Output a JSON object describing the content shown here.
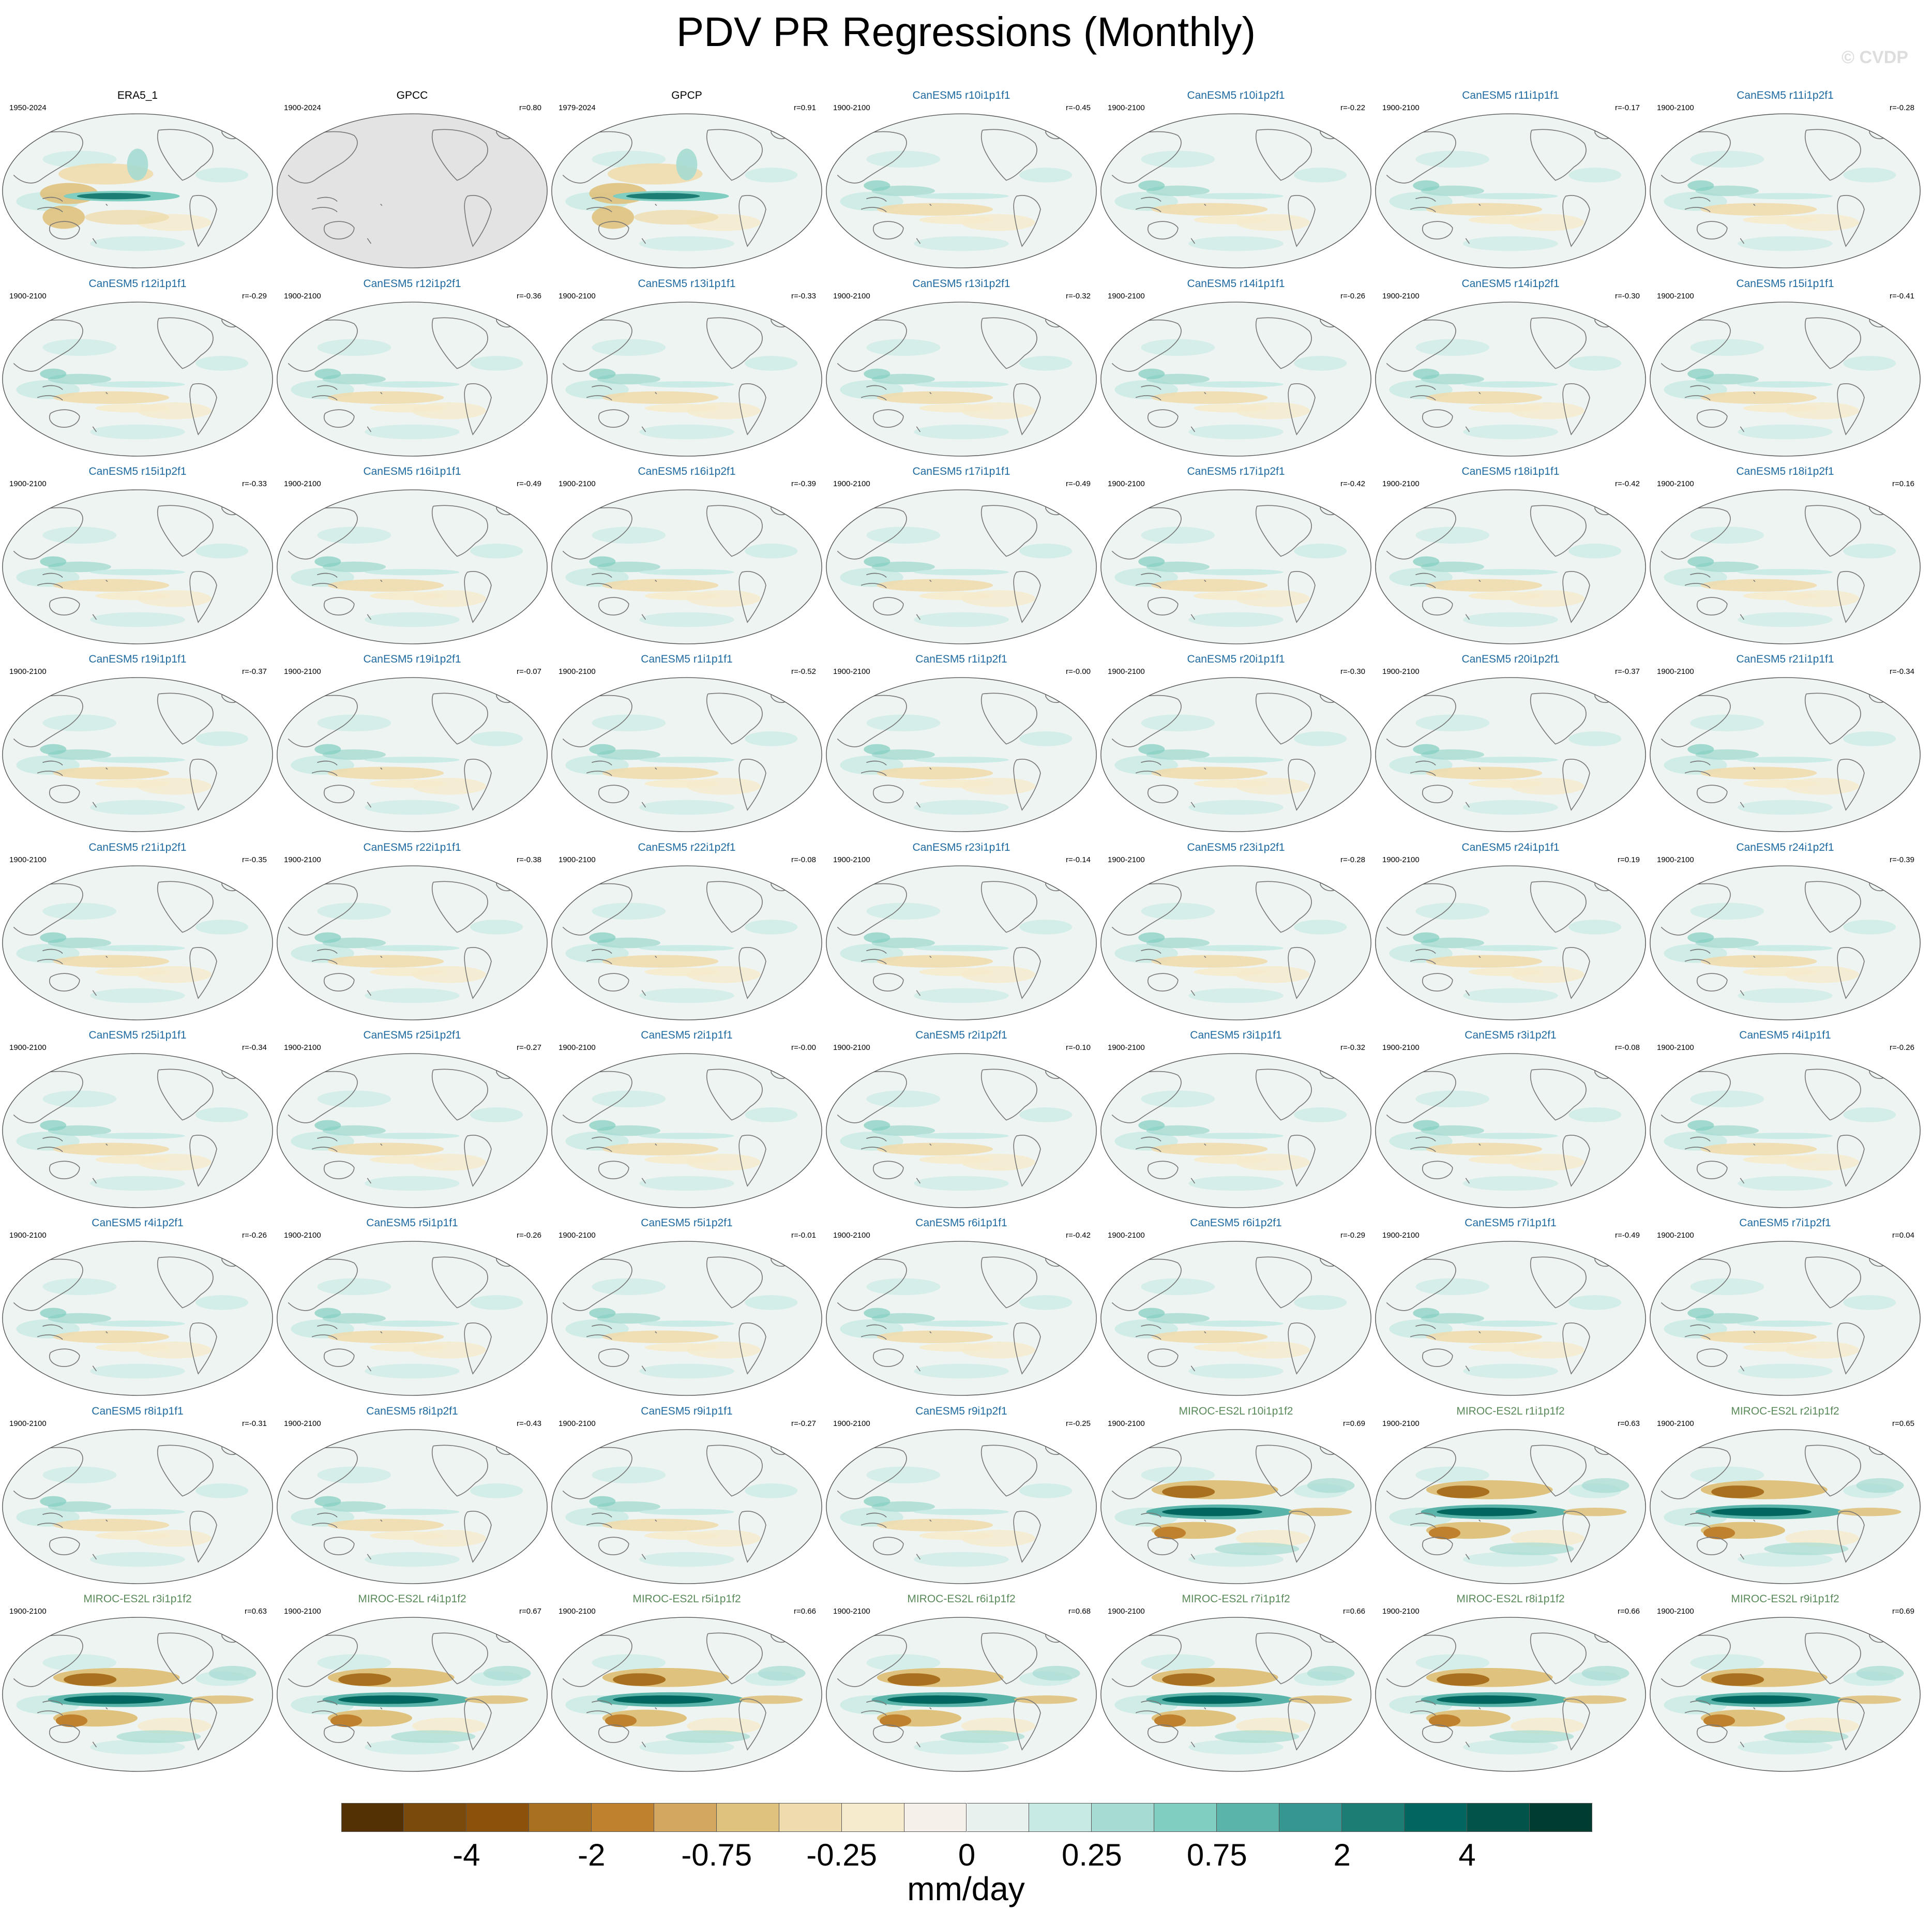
{
  "title": "PDV PR Regressions (Monthly)",
  "copyright": "© CVDP",
  "colors": {
    "ref_title": "#000000",
    "canesm_title": "#1e6aa0",
    "miroc_title": "#5a8a5a",
    "land_outline": "#777777",
    "gpcc_missing": "#e3e3e3"
  },
  "panels": [
    {
      "title": "ERA5_1",
      "years": "1950-2024",
      "corr": "",
      "group": "ref",
      "pattern": "obs"
    },
    {
      "title": "GPCC",
      "years": "1900-2024",
      "corr": "r=0.80",
      "group": "ref",
      "pattern": "gpcc"
    },
    {
      "title": "GPCP",
      "years": "1979-2024",
      "corr": "r=0.91",
      "group": "ref",
      "pattern": "obs"
    },
    {
      "title": "CanESM5 r10i1p1f1",
      "years": "1900-2100",
      "corr": "r=-0.45",
      "group": "canesm",
      "pattern": "canesm"
    },
    {
      "title": "CanESM5 r10i1p2f1",
      "years": "1900-2100",
      "corr": "r=-0.22",
      "group": "canesm",
      "pattern": "canesm"
    },
    {
      "title": "CanESM5 r11i1p1f1",
      "years": "1900-2100",
      "corr": "r=-0.17",
      "group": "canesm",
      "pattern": "canesm"
    },
    {
      "title": "CanESM5 r11i1p2f1",
      "years": "1900-2100",
      "corr": "r=-0.28",
      "group": "canesm",
      "pattern": "canesm"
    },
    {
      "title": "CanESM5 r12i1p1f1",
      "years": "1900-2100",
      "corr": "r=-0.29",
      "group": "canesm",
      "pattern": "canesm"
    },
    {
      "title": "CanESM5 r12i1p2f1",
      "years": "1900-2100",
      "corr": "r=-0.36",
      "group": "canesm",
      "pattern": "canesm"
    },
    {
      "title": "CanESM5 r13i1p1f1",
      "years": "1900-2100",
      "corr": "r=-0.33",
      "group": "canesm",
      "pattern": "canesm"
    },
    {
      "title": "CanESM5 r13i1p2f1",
      "years": "1900-2100",
      "corr": "r=-0.32",
      "group": "canesm",
      "pattern": "canesm"
    },
    {
      "title": "CanESM5 r14i1p1f1",
      "years": "1900-2100",
      "corr": "r=-0.26",
      "group": "canesm",
      "pattern": "canesm"
    },
    {
      "title": "CanESM5 r14i1p2f1",
      "years": "1900-2100",
      "corr": "r=-0.30",
      "group": "canesm",
      "pattern": "canesm"
    },
    {
      "title": "CanESM5 r15i1p1f1",
      "years": "1900-2100",
      "corr": "r=-0.41",
      "group": "canesm",
      "pattern": "canesm"
    },
    {
      "title": "CanESM5 r15i1p2f1",
      "years": "1900-2100",
      "corr": "r=-0.33",
      "group": "canesm",
      "pattern": "canesm"
    },
    {
      "title": "CanESM5 r16i1p1f1",
      "years": "1900-2100",
      "corr": "r=-0.49",
      "group": "canesm",
      "pattern": "canesm"
    },
    {
      "title": "CanESM5 r16i1p2f1",
      "years": "1900-2100",
      "corr": "r=-0.39",
      "group": "canesm",
      "pattern": "canesm"
    },
    {
      "title": "CanESM5 r17i1p1f1",
      "years": "1900-2100",
      "corr": "r=-0.49",
      "group": "canesm",
      "pattern": "canesm"
    },
    {
      "title": "CanESM5 r17i1p2f1",
      "years": "1900-2100",
      "corr": "r=-0.42",
      "group": "canesm",
      "pattern": "canesm"
    },
    {
      "title": "CanESM5 r18i1p1f1",
      "years": "1900-2100",
      "corr": "r=-0.42",
      "group": "canesm",
      "pattern": "canesm"
    },
    {
      "title": "CanESM5 r18i1p2f1",
      "years": "1900-2100",
      "corr": "r=0.16",
      "group": "canesm",
      "pattern": "canesm"
    },
    {
      "title": "CanESM5 r19i1p1f1",
      "years": "1900-2100",
      "corr": "r=-0.37",
      "group": "canesm",
      "pattern": "canesm"
    },
    {
      "title": "CanESM5 r19i1p2f1",
      "years": "1900-2100",
      "corr": "r=-0.07",
      "group": "canesm",
      "pattern": "canesm"
    },
    {
      "title": "CanESM5 r1i1p1f1",
      "years": "1900-2100",
      "corr": "r=-0.52",
      "group": "canesm",
      "pattern": "canesm"
    },
    {
      "title": "CanESM5 r1i1p2f1",
      "years": "1900-2100",
      "corr": "r=-0.00",
      "group": "canesm",
      "pattern": "canesm"
    },
    {
      "title": "CanESM5 r20i1p1f1",
      "years": "1900-2100",
      "corr": "r=-0.30",
      "group": "canesm",
      "pattern": "canesm"
    },
    {
      "title": "CanESM5 r20i1p2f1",
      "years": "1900-2100",
      "corr": "r=-0.37",
      "group": "canesm",
      "pattern": "canesm"
    },
    {
      "title": "CanESM5 r21i1p1f1",
      "years": "1900-2100",
      "corr": "r=-0.34",
      "group": "canesm",
      "pattern": "canesm"
    },
    {
      "title": "CanESM5 r21i1p2f1",
      "years": "1900-2100",
      "corr": "r=-0.35",
      "group": "canesm",
      "pattern": "canesm"
    },
    {
      "title": "CanESM5 r22i1p1f1",
      "years": "1900-2100",
      "corr": "r=-0.38",
      "group": "canesm",
      "pattern": "canesm"
    },
    {
      "title": "CanESM5 r22i1p2f1",
      "years": "1900-2100",
      "corr": "r=-0.08",
      "group": "canesm",
      "pattern": "canesm"
    },
    {
      "title": "CanESM5 r23i1p1f1",
      "years": "1900-2100",
      "corr": "r=-0.14",
      "group": "canesm",
      "pattern": "canesm"
    },
    {
      "title": "CanESM5 r23i1p2f1",
      "years": "1900-2100",
      "corr": "r=-0.28",
      "group": "canesm",
      "pattern": "canesm"
    },
    {
      "title": "CanESM5 r24i1p1f1",
      "years": "1900-2100",
      "corr": "r=0.19",
      "group": "canesm",
      "pattern": "canesm"
    },
    {
      "title": "CanESM5 r24i1p2f1",
      "years": "1900-2100",
      "corr": "r=-0.39",
      "group": "canesm",
      "pattern": "canesm"
    },
    {
      "title": "CanESM5 r25i1p1f1",
      "years": "1900-2100",
      "corr": "r=-0.34",
      "group": "canesm",
      "pattern": "canesm"
    },
    {
      "title": "CanESM5 r25i1p2f1",
      "years": "1900-2100",
      "corr": "r=-0.27",
      "group": "canesm",
      "pattern": "canesm"
    },
    {
      "title": "CanESM5 r2i1p1f1",
      "years": "1900-2100",
      "corr": "r=-0.00",
      "group": "canesm",
      "pattern": "canesm"
    },
    {
      "title": "CanESM5 r2i1p2f1",
      "years": "1900-2100",
      "corr": "r=-0.10",
      "group": "canesm",
      "pattern": "canesm"
    },
    {
      "title": "CanESM5 r3i1p1f1",
      "years": "1900-2100",
      "corr": "r=-0.32",
      "group": "canesm",
      "pattern": "canesm"
    },
    {
      "title": "CanESM5 r3i1p2f1",
      "years": "1900-2100",
      "corr": "r=-0.08",
      "group": "canesm",
      "pattern": "canesm"
    },
    {
      "title": "CanESM5 r4i1p1f1",
      "years": "1900-2100",
      "corr": "r=-0.26",
      "group": "canesm",
      "pattern": "canesm"
    },
    {
      "title": "CanESM5 r4i1p2f1",
      "years": "1900-2100",
      "corr": "r=-0.26",
      "group": "canesm",
      "pattern": "canesm"
    },
    {
      "title": "CanESM5 r5i1p1f1",
      "years": "1900-2100",
      "corr": "r=-0.26",
      "group": "canesm",
      "pattern": "canesm"
    },
    {
      "title": "CanESM5 r5i1p2f1",
      "years": "1900-2100",
      "corr": "r=-0.01",
      "group": "canesm",
      "pattern": "canesm"
    },
    {
      "title": "CanESM5 r6i1p1f1",
      "years": "1900-2100",
      "corr": "r=-0.42",
      "group": "canesm",
      "pattern": "canesm"
    },
    {
      "title": "CanESM5 r6i1p2f1",
      "years": "1900-2100",
      "corr": "r=-0.29",
      "group": "canesm",
      "pattern": "canesm"
    },
    {
      "title": "CanESM5 r7i1p1f1",
      "years": "1900-2100",
      "corr": "r=-0.49",
      "group": "canesm",
      "pattern": "canesm"
    },
    {
      "title": "CanESM5 r7i1p2f1",
      "years": "1900-2100",
      "corr": "r=0.04",
      "group": "canesm",
      "pattern": "canesm"
    },
    {
      "title": "CanESM5 r8i1p1f1",
      "years": "1900-2100",
      "corr": "r=-0.31",
      "group": "canesm",
      "pattern": "canesm"
    },
    {
      "title": "CanESM5 r8i1p2f1",
      "years": "1900-2100",
      "corr": "r=-0.43",
      "group": "canesm",
      "pattern": "canesm"
    },
    {
      "title": "CanESM5 r9i1p1f1",
      "years": "1900-2100",
      "corr": "r=-0.27",
      "group": "canesm",
      "pattern": "canesm"
    },
    {
      "title": "CanESM5 r9i1p2f1",
      "years": "1900-2100",
      "corr": "r=-0.25",
      "group": "canesm",
      "pattern": "canesm"
    },
    {
      "title": "MIROC-ES2L r10i1p1f2",
      "years": "1900-2100",
      "corr": "r=0.69",
      "group": "miroc",
      "pattern": "miroc"
    },
    {
      "title": "MIROC-ES2L r1i1p1f2",
      "years": "1900-2100",
      "corr": "r=0.63",
      "group": "miroc",
      "pattern": "miroc"
    },
    {
      "title": "MIROC-ES2L r2i1p1f2",
      "years": "1900-2100",
      "corr": "r=0.65",
      "group": "miroc",
      "pattern": "miroc"
    },
    {
      "title": "MIROC-ES2L r3i1p1f2",
      "years": "1900-2100",
      "corr": "r=0.63",
      "group": "miroc",
      "pattern": "miroc"
    },
    {
      "title": "MIROC-ES2L r4i1p1f2",
      "years": "1900-2100",
      "corr": "r=0.67",
      "group": "miroc",
      "pattern": "miroc"
    },
    {
      "title": "MIROC-ES2L r5i1p1f2",
      "years": "1900-2100",
      "corr": "r=0.66",
      "group": "miroc",
      "pattern": "miroc"
    },
    {
      "title": "MIROC-ES2L r6i1p1f2",
      "years": "1900-2100",
      "corr": "r=0.68",
      "group": "miroc",
      "pattern": "miroc"
    },
    {
      "title": "MIROC-ES2L r7i1p1f2",
      "years": "1900-2100",
      "corr": "r=0.66",
      "group": "miroc",
      "pattern": "miroc"
    },
    {
      "title": "MIROC-ES2L r8i1p1f2",
      "years": "1900-2100",
      "corr": "r=0.66",
      "group": "miroc",
      "pattern": "miroc"
    },
    {
      "title": "MIROC-ES2L r9i1p1f2",
      "years": "1900-2100",
      "corr": "r=0.69",
      "group": "miroc",
      "pattern": "miroc"
    }
  ],
  "colorbar": {
    "units": "mm/day",
    "labels": [
      "-4",
      "-2",
      "-0.75",
      "-0.25",
      "0",
      "0.25",
      "0.75",
      "2",
      "4"
    ],
    "colors": [
      "#543005",
      "#7a4a0c",
      "#8c510a",
      "#a8701f",
      "#bf812d",
      "#d4a760",
      "#dfc27d",
      "#efdcae",
      "#f6ebcc",
      "#f5f1ea",
      "#e9f1ef",
      "#c7eae5",
      "#a5dbd2",
      "#80cdc1",
      "#5ab4a9",
      "#35978f",
      "#1b7d74",
      "#01665e",
      "#02544b",
      "#003c30"
    ]
  }
}
